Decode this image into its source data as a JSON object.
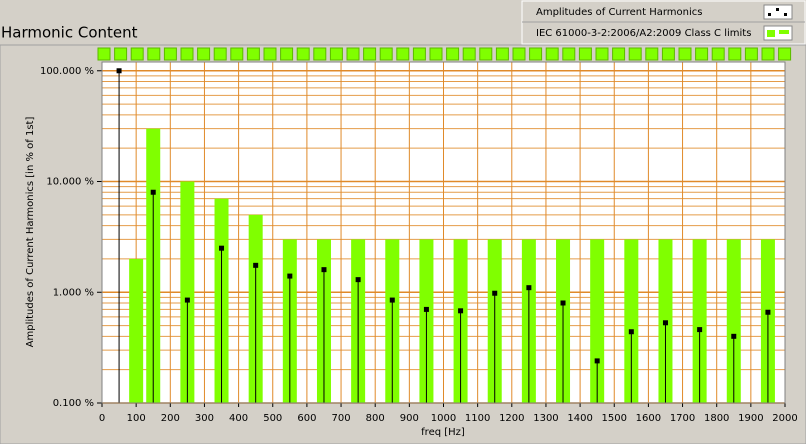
{
  "chart_data": {
    "type": "harmonic",
    "title": "Harmonic Content",
    "x_label": "freq [Hz]",
    "y_label": "Amplitudes of Current Harmonics [in % of 1st]",
    "xlim": [
      0,
      2000
    ],
    "xticks": [
      0,
      100,
      200,
      300,
      400,
      500,
      600,
      700,
      800,
      900,
      1000,
      1100,
      1200,
      1300,
      1400,
      1500,
      1600,
      1700,
      1800,
      1900,
      2000
    ],
    "ylim": [
      0.1,
      120
    ],
    "yticks": [
      {
        "value": 100,
        "label": "100.000 %"
      },
      {
        "value": 10,
        "label": "10.000 %"
      },
      {
        "value": 1,
        "label": "1.000 %"
      },
      {
        "value": 0.1,
        "label": "0.100 %"
      }
    ],
    "log_y": true,
    "grid": true,
    "minor_grid": true,
    "grid_color": "#e08a2a",
    "legend_position": "top-right",
    "series": [
      {
        "name": "Amplitudes of Current Harmonics",
        "color": "#000000",
        "style": "stem",
        "x": [
          50,
          150,
          250,
          350,
          450,
          550,
          650,
          750,
          850,
          950,
          1050,
          1150,
          1250,
          1350,
          1450,
          1550,
          1650,
          1750,
          1850,
          1950
        ],
        "values": [
          100,
          8,
          0.85,
          2.5,
          1.75,
          1.4,
          1.6,
          1.3,
          0.85,
          0.7,
          0.68,
          0.98,
          1.1,
          0.8,
          0.24,
          0.44,
          0.53,
          0.46,
          0.4,
          0.66
        ]
      },
      {
        "name": "IEC 61000-3-2:2006/A2:2009 Class C limits",
        "color": "#80ff00",
        "style": "bar",
        "x": [
          100,
          150,
          250,
          350,
          450,
          550,
          650,
          750,
          850,
          950,
          1050,
          1150,
          1250,
          1350,
          1450,
          1550,
          1650,
          1750,
          1850,
          1950
        ],
        "values": [
          2,
          30,
          10,
          7,
          5,
          3,
          3,
          3,
          3,
          3,
          3,
          3,
          3,
          3,
          3,
          3,
          3,
          3,
          3,
          3
        ]
      }
    ]
  }
}
